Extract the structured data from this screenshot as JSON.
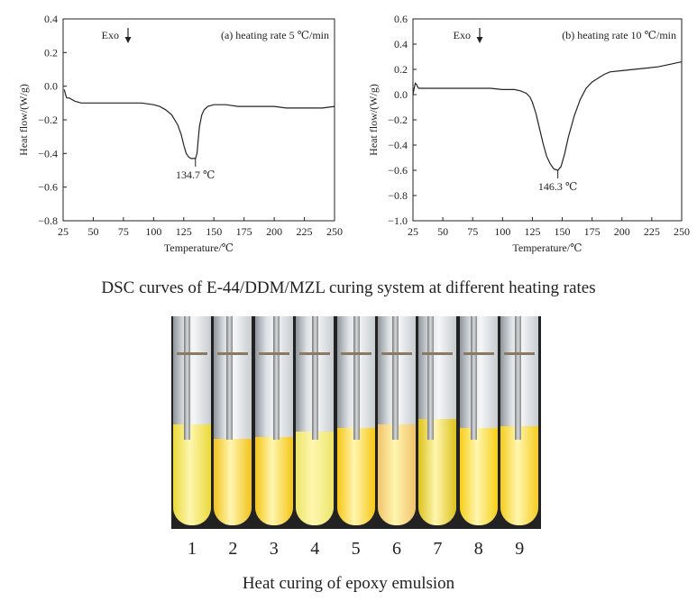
{
  "chart_data": [
    {
      "type": "line",
      "title": "(a) heating rate 5 ℃/min",
      "xlabel": "Temperature/℃",
      "ylabel": "Heat flow/(W/g)",
      "xlim": [
        25,
        250
      ],
      "ylim": [
        -0.8,
        0.4
      ],
      "x_ticks": [
        "25",
        "50",
        "75",
        "100",
        "125",
        "150",
        "175",
        "200",
        "225",
        "250"
      ],
      "y_ticks": [
        "0.4",
        "0.2",
        "0.0",
        "−0.2",
        "−0.4",
        "−0.6",
        "−0.8"
      ],
      "exo_label": "Exo",
      "peak_label": "134.7 ℃",
      "peak": {
        "x": 134.7,
        "y": -0.43
      },
      "series": [
        {
          "x": [
            26,
            27,
            28,
            30,
            35,
            40,
            50,
            60,
            70,
            80,
            90,
            100,
            105,
            110,
            115,
            120,
            123,
            125,
            127,
            129,
            131,
            133,
            134.7,
            136,
            137,
            138,
            140,
            142,
            145,
            150,
            160,
            170,
            180,
            190,
            200,
            210,
            220,
            230,
            240,
            250
          ],
          "y": [
            -0.02,
            -0.05,
            -0.07,
            -0.07,
            -0.09,
            -0.1,
            -0.1,
            -0.1,
            -0.1,
            -0.1,
            -0.1,
            -0.11,
            -0.12,
            -0.14,
            -0.17,
            -0.23,
            -0.29,
            -0.35,
            -0.4,
            -0.42,
            -0.43,
            -0.43,
            -0.43,
            -0.4,
            -0.32,
            -0.24,
            -0.17,
            -0.14,
            -0.12,
            -0.11,
            -0.11,
            -0.12,
            -0.12,
            -0.12,
            -0.12,
            -0.13,
            -0.13,
            -0.13,
            -0.13,
            -0.12
          ]
        }
      ]
    },
    {
      "type": "line",
      "title": "(b) heating rate 10 ℃/min",
      "xlabel": "Temperature/℃",
      "ylabel": "Heat flow/(W/g)",
      "xlim": [
        25,
        250
      ],
      "ylim": [
        -1.0,
        0.6
      ],
      "x_ticks": [
        "25",
        "50",
        "75",
        "100",
        "125",
        "150",
        "175",
        "200",
        "225",
        "250"
      ],
      "y_ticks": [
        "0.6",
        "0.4",
        "0.2",
        "0.0",
        "−0.2",
        "−0.4",
        "−0.6",
        "−0.8",
        "−1.0"
      ],
      "exo_label": "Exo",
      "peak_label": "146.3 ℃",
      "peak": {
        "x": 146.3,
        "y": -0.6
      },
      "series": [
        {
          "x": [
            25,
            26,
            27,
            28,
            29,
            30,
            35,
            40,
            50,
            60,
            70,
            80,
            90,
            100,
            110,
            115,
            120,
            123,
            125,
            128,
            131,
            134,
            137,
            140,
            143,
            146.3,
            149,
            152,
            155,
            160,
            165,
            170,
            175,
            180,
            185,
            190,
            200,
            210,
            220,
            230,
            240,
            250
          ],
          "y": [
            0.0,
            0.05,
            0.09,
            0.08,
            0.06,
            0.05,
            0.05,
            0.05,
            0.05,
            0.05,
            0.05,
            0.05,
            0.05,
            0.04,
            0.04,
            0.03,
            0.01,
            -0.02,
            -0.06,
            -0.15,
            -0.27,
            -0.39,
            -0.49,
            -0.55,
            -0.59,
            -0.6,
            -0.57,
            -0.47,
            -0.34,
            -0.17,
            -0.04,
            0.05,
            0.1,
            0.13,
            0.16,
            0.18,
            0.19,
            0.2,
            0.21,
            0.22,
            0.24,
            0.26
          ]
        }
      ]
    }
  ],
  "captions": {
    "dsc": "DSC curves of E-44/DDM/MZL curing system at different heating rates",
    "heat": "Heat curing of epoxy emulsion"
  },
  "tubes": {
    "labels": [
      "1",
      "2",
      "3",
      "4",
      "5",
      "6",
      "7",
      "8",
      "9"
    ],
    "liquid_colors": [
      "#e9d93a",
      "#f2c21a",
      "#f5c514",
      "#ede56a",
      "#f7c614",
      "#f2c26a",
      "#dcc21c",
      "#f6cf17",
      "#f5cc1c"
    ]
  }
}
